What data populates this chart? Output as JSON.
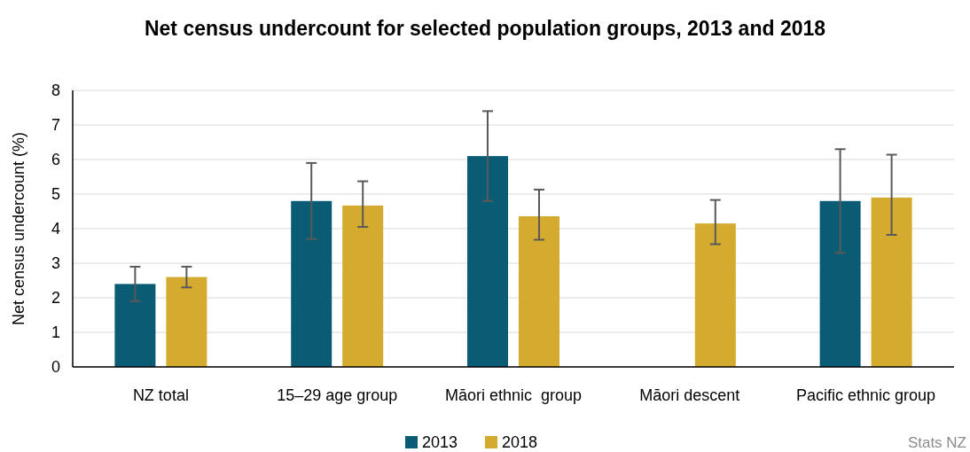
{
  "chart_data": {
    "type": "bar",
    "title": "Net census undercount for selected population groups, 2013 and 2018",
    "ylabel": "Net census undercount (%)",
    "categories": [
      "NZ total",
      "15–29 age group",
      "Māori ethnic  group",
      "Māori descent",
      "Pacific ethnic group"
    ],
    "series": [
      {
        "name": "2013",
        "color": "#0a5c75",
        "values": [
          2.4,
          4.8,
          6.1,
          null,
          4.8
        ],
        "errors": [
          [
            1.9,
            2.9
          ],
          [
            3.7,
            5.9
          ],
          [
            4.8,
            7.4
          ],
          null,
          [
            3.3,
            6.3
          ]
        ]
      },
      {
        "name": "2018",
        "color": "#d4ab2f",
        "values": [
          2.6,
          4.67,
          4.36,
          4.15,
          4.9
        ],
        "errors": [
          [
            2.3,
            2.9
          ],
          [
            4.05,
            5.37
          ],
          [
            3.68,
            5.13
          ],
          [
            3.55,
            4.83
          ],
          [
            3.82,
            6.14
          ]
        ]
      }
    ],
    "ylim": [
      0,
      8
    ],
    "yticks": [
      0,
      1,
      2,
      3,
      4,
      5,
      6,
      7,
      8
    ],
    "grid": "y",
    "legend": "bottom",
    "annotations": [
      "Stats NZ"
    ]
  }
}
